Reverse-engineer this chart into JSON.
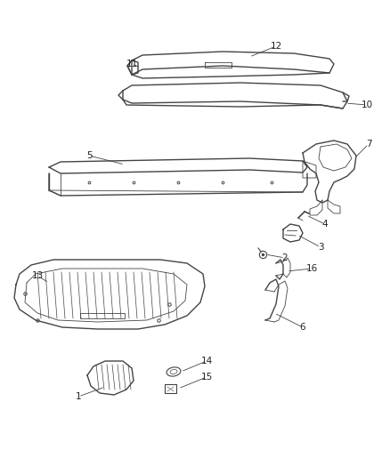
{
  "bg_color": "#ffffff",
  "line_color": "#444444",
  "text_color": "#222222",
  "figsize": [
    4.38,
    5.33
  ],
  "dpi": 100,
  "label_fs": 7.5
}
